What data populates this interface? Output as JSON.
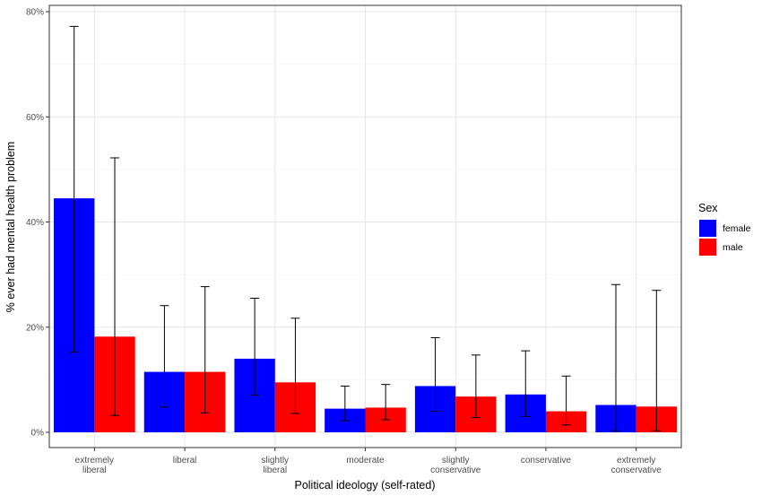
{
  "chart_data": {
    "type": "bar",
    "title": "",
    "xlabel": "Political ideology (self-rated)",
    "ylabel": "% ever had mental health problem",
    "categories": [
      [
        "extremely",
        "liberal"
      ],
      [
        "liberal"
      ],
      [
        "slightly",
        "liberal"
      ],
      [
        "moderate"
      ],
      [
        "slightly",
        "conservative"
      ],
      [
        "conservative"
      ],
      [
        "extremely",
        "conservative"
      ]
    ],
    "series": [
      {
        "name": "female",
        "color": "#0000ff",
        "values": [
          44.5,
          11.5,
          14.0,
          4.5,
          8.8,
          7.2,
          5.2
        ],
        "ci_low": [
          15.3,
          4.8,
          7.1,
          2.2,
          4.0,
          3.0,
          0.3
        ],
        "ci_high": [
          77.2,
          24.1,
          25.5,
          8.8,
          18.0,
          15.5,
          28.1
        ]
      },
      {
        "name": "male",
        "color": "#ff0000",
        "values": [
          18.2,
          11.5,
          9.5,
          4.7,
          6.8,
          4.0,
          4.9
        ],
        "ci_low": [
          3.2,
          3.7,
          3.6,
          2.4,
          2.8,
          1.4,
          0.3
        ],
        "ci_high": [
          52.2,
          27.7,
          21.7,
          9.1,
          14.7,
          10.7,
          27.0
        ]
      }
    ],
    "ylim": [
      0,
      80
    ],
    "yticks": [
      0,
      20,
      40,
      60,
      80
    ],
    "ytick_labels": [
      "0%",
      "20%",
      "40%",
      "60%",
      "80%"
    ],
    "legend": {
      "title": "Sex",
      "position": "right"
    },
    "grid": true
  }
}
